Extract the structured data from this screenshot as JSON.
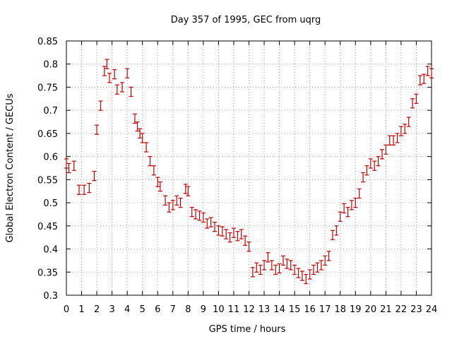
{
  "chart_data": {
    "type": "scatter",
    "title": "Day 357 of 1995, GEC from uqrg",
    "xlabel": "GPS time / hours",
    "ylabel": "Global Electron Content / GECUs",
    "xlim": [
      0,
      24
    ],
    "ylim": [
      0.3,
      0.85
    ],
    "xticks": [
      "0",
      "1",
      "2",
      "3",
      "4",
      "5",
      "6",
      "7",
      "8",
      "9",
      "10",
      "11",
      "12",
      "13",
      "14",
      "15",
      "16",
      "17",
      "18",
      "19",
      "20",
      "21",
      "22",
      "23",
      "24"
    ],
    "yticks": [
      "0.3",
      "0.35",
      "0.4",
      "0.45",
      "0.5",
      "0.55",
      "0.6",
      "0.65",
      "0.7",
      "0.75",
      "0.8",
      "0.85"
    ],
    "grid": true,
    "series": [
      {
        "name": "GEC",
        "color": "#c00000",
        "error": 0.01,
        "x": [
          0.0,
          0.167,
          0.5,
          0.833,
          1.167,
          1.5,
          1.833,
          2.0,
          2.25,
          2.5,
          2.667,
          2.833,
          3.167,
          3.333,
          3.667,
          4.0,
          4.25,
          4.5,
          4.667,
          4.833,
          5.0,
          5.25,
          5.5,
          5.75,
          6.0,
          6.167,
          6.5,
          6.75,
          7.0,
          7.25,
          7.5,
          7.833,
          8.0,
          8.25,
          8.5,
          8.75,
          9.0,
          9.25,
          9.5,
          9.75,
          10.0,
          10.25,
          10.5,
          10.75,
          11.0,
          11.25,
          11.5,
          11.75,
          12.0,
          12.25,
          12.5,
          12.75,
          13.0,
          13.25,
          13.5,
          13.75,
          14.0,
          14.25,
          14.5,
          14.75,
          15.0,
          15.25,
          15.5,
          15.75,
          16.0,
          16.25,
          16.5,
          16.75,
          17.0,
          17.25,
          17.5,
          17.75,
          18.0,
          18.25,
          18.5,
          18.75,
          19.0,
          19.25,
          19.5,
          19.75,
          20.0,
          20.25,
          20.5,
          20.75,
          21.0,
          21.25,
          21.5,
          21.75,
          22.0,
          22.25,
          22.5,
          22.75,
          23.0,
          23.25,
          23.5,
          23.75,
          24.0
        ],
        "y": [
          0.585,
          0.575,
          0.58,
          0.528,
          0.528,
          0.532,
          0.558,
          0.658,
          0.71,
          0.785,
          0.8,
          0.77,
          0.778,
          0.745,
          0.75,
          0.78,
          0.74,
          0.682,
          0.665,
          0.65,
          0.64,
          0.62,
          0.59,
          0.57,
          0.545,
          0.535,
          0.505,
          0.49,
          0.495,
          0.505,
          0.5,
          0.53,
          0.525,
          0.48,
          0.475,
          0.472,
          0.468,
          0.455,
          0.458,
          0.448,
          0.44,
          0.438,
          0.432,
          0.425,
          0.435,
          0.428,
          0.432,
          0.418,
          0.405,
          0.35,
          0.36,
          0.355,
          0.365,
          0.382,
          0.365,
          0.355,
          0.358,
          0.375,
          0.368,
          0.365,
          0.355,
          0.348,
          0.342,
          0.335,
          0.345,
          0.355,
          0.36,
          0.365,
          0.375,
          0.385,
          0.43,
          0.44,
          0.47,
          0.488,
          0.48,
          0.495,
          0.5,
          0.52,
          0.555,
          0.57,
          0.585,
          0.58,
          0.59,
          0.605,
          0.615,
          0.635,
          0.635,
          0.64,
          0.655,
          0.66,
          0.675,
          0.715,
          0.725,
          0.765,
          0.768,
          0.785,
          0.78
        ]
      }
    ]
  }
}
